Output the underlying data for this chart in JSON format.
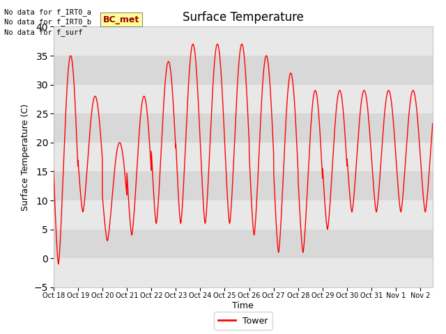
{
  "title": "Surface Temperature",
  "xlabel": "Time",
  "ylabel": "Surface Temperature (C)",
  "ylim": [
    -5,
    40
  ],
  "yticks": [
    -5,
    0,
    5,
    10,
    15,
    20,
    25,
    30,
    35,
    40
  ],
  "fig_bg": "#ffffff",
  "plot_bg": "#e8e8e8",
  "band_light": "#e8e8e8",
  "band_dark": "#d8d8d8",
  "line_color": "#ff0000",
  "legend_label": "Tower",
  "text_lines": [
    "No data for f_IRT0_a",
    "No data for f_IRT0_b",
    "No data for f_surf"
  ],
  "bc_met_label": "BC_met",
  "xtick_labels": [
    "Oct 18",
    "Oct 19",
    "Oct 20",
    "Oct 21",
    "Oct 22",
    "Oct 23",
    "Oct 24",
    "Oct 25",
    "Oct 26",
    "Oct 27",
    "Oct 28",
    "Oct 29",
    "Oct 30",
    "Oct 31",
    "Nov 1",
    "Nov 2"
  ],
  "day_max": [
    35,
    28,
    20,
    28,
    34,
    37,
    37,
    37,
    35,
    32,
    29,
    29,
    29,
    29,
    29
  ],
  "day_min": [
    -1,
    8,
    3,
    4,
    6,
    6,
    6,
    6,
    4,
    1,
    1,
    5,
    8,
    8,
    8
  ],
  "n_days": 15.5,
  "points_per_day": 144
}
